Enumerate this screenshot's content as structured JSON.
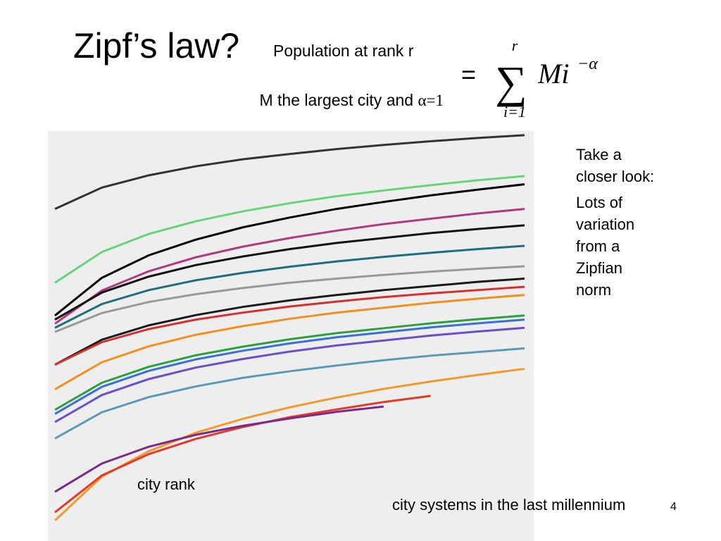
{
  "slide": {
    "title": "Zipf’s law?",
    "subtitle": "Population at rank r",
    "note_prefix": "M the largest city and ",
    "note_alpha": "α=1",
    "formula": {
      "equals": "=",
      "sigma": "∑",
      "upper": "r",
      "lower": "i=1",
      "term": "Mi",
      "exponent": "−α"
    },
    "side_text": [
      "Take a closer look:",
      "Lots of variation from a Zipfian norm"
    ],
    "caption": "city systems in the last millennium",
    "page_number": "4"
  },
  "chart_data": {
    "type": "line",
    "x_label": "city rank",
    "x": [
      1,
      2,
      3,
      4,
      5,
      6,
      7,
      8,
      9,
      10,
      11
    ],
    "xlim": [
      1,
      11
    ],
    "ylim": [
      0,
      100
    ],
    "series": [
      {
        "color": "#333333",
        "values": [
          81,
          86.2,
          89.2,
          91.4,
          93.1,
          94.4,
          95.6,
          96.6,
          97.5,
          98.3,
          99
        ]
      },
      {
        "color": "#66d47a",
        "values": [
          63,
          70.5,
          74.9,
          78,
          80.4,
          82.4,
          84.1,
          85.5,
          86.8,
          88,
          89
        ]
      },
      {
        "color": "#000000",
        "values": [
          55,
          64.2,
          69.7,
          73.5,
          76.5,
          78.9,
          81,
          82.7,
          84.3,
          85.7,
          87
        ]
      },
      {
        "color": "#b03a80",
        "values": [
          53,
          61.1,
          65.8,
          69.2,
          71.8,
          73.9,
          75.7,
          77.3,
          78.6,
          79.9,
          81
        ]
      },
      {
        "color": "#111111",
        "values": [
          54,
          60.6,
          64.5,
          67.3,
          69.4,
          71.2,
          72.7,
          73.9,
          75.1,
          76.1,
          77
        ]
      },
      {
        "color": "#1f6e80",
        "values": [
          52,
          57.8,
          61.2,
          63.6,
          65.4,
          66.9,
          68.2,
          69.3,
          70.3,
          71.2,
          72
        ]
      },
      {
        "color": "#999999",
        "values": [
          51,
          55.6,
          58.3,
          60.2,
          61.7,
          63,
          64,
          64.9,
          65.7,
          66.4,
          67
        ]
      },
      {
        "color": "#1a1a1a",
        "values": [
          43,
          49.1,
          52.6,
          55.1,
          57.1,
          58.7,
          60,
          61.2,
          62.2,
          63.2,
          64
        ]
      },
      {
        "color": "#d43030",
        "values": [
          43,
          48.5,
          51.7,
          54,
          55.7,
          57.2,
          58.4,
          59.5,
          60.4,
          61.2,
          62
        ]
      },
      {
        "color": "#f0901e",
        "values": [
          37,
          43.6,
          47.5,
          50.3,
          52.4,
          54.2,
          55.7,
          56.9,
          58.1,
          59.1,
          60
        ]
      },
      {
        "color": "#2ca040",
        "values": [
          32,
          38.6,
          42.5,
          45.3,
          47.4,
          49.2,
          50.7,
          51.9,
          53.1,
          54.1,
          55
        ]
      },
      {
        "color": "#3a6fd8",
        "values": [
          31,
          37.6,
          41.5,
          44.3,
          46.4,
          48.2,
          49.7,
          50.9,
          52.1,
          53.1,
          54
        ]
      },
      {
        "color": "#6a4fc8",
        "values": [
          29,
          35.6,
          39.5,
          42.3,
          44.4,
          46.2,
          47.7,
          48.9,
          50.1,
          51.1,
          52
        ]
      },
      {
        "color": "#5a9ab8",
        "values": [
          25,
          31.4,
          35.1,
          37.7,
          39.8,
          41.4,
          42.8,
          44.1,
          45.2,
          46.1,
          47
        ]
      },
      {
        "color": "#f09a2a",
        "values": [
          5,
          15.7,
          21.9,
          26.4,
          29.8,
          32.6,
          35,
          37.1,
          38.9,
          40.5,
          42
        ]
      },
      {
        "color": "#e03a2a",
        "values": [
          7,
          16,
          21.2,
          24.9,
          27.8,
          30.2,
          32.1,
          33.9,
          35.4,
          null,
          null
        ]
      },
      {
        "color": "#7a2a8a",
        "values": [
          12,
          18.9,
          23,
          25.9,
          28.1,
          29.9,
          31.5,
          32.8,
          null,
          null,
          null
        ]
      }
    ]
  }
}
